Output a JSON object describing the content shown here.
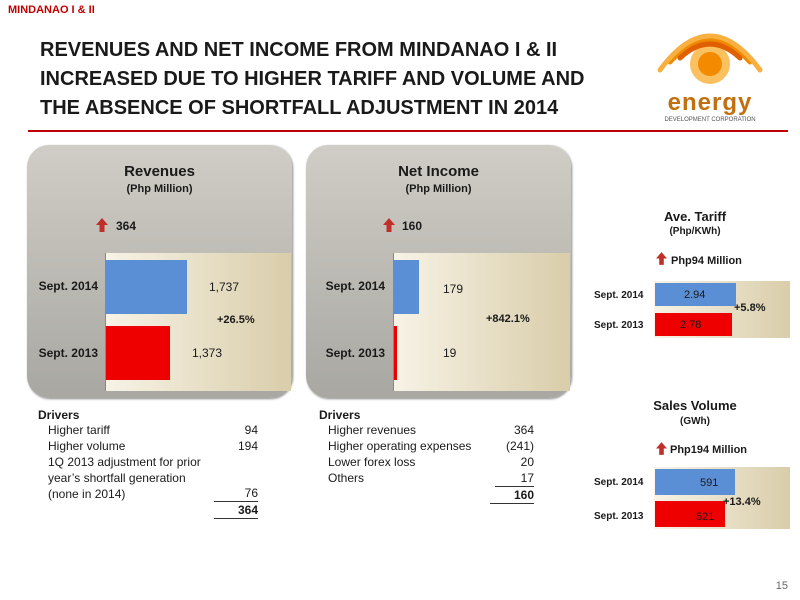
{
  "header": {
    "tag": "MINDANAO I & II",
    "title_lines": [
      "REVENUES AND NET INCOME FROM MINDANAO I & II",
      "INCREASED DUE TO HIGHER TARIFF AND VOLUME AND",
      "THE ABSENCE OF SHORTFALL ADJUSTMENT IN 2014"
    ]
  },
  "logo": {
    "word": "energy",
    "sub": "DEVELOPMENT CORPORATION"
  },
  "colors": {
    "accent": "#c00000",
    "blue_bar": "#5a8fd6",
    "red_bar": "#ee0000"
  },
  "revenues": {
    "title": "Revenues",
    "unit": "(Php Million)",
    "change": "364",
    "pct": "+26.5%",
    "drivers_label": "Drivers",
    "drivers": [
      {
        "label": "Higher tariff",
        "value": "94"
      },
      {
        "label": "Higher volume",
        "value": "194"
      },
      {
        "label": "1Q 2013 adjustment for prior year’s shortfall generation (none in 2014)",
        "value": "76"
      }
    ],
    "total": "364"
  },
  "net_income": {
    "title": "Net Income",
    "unit": "(Php Million)",
    "change": "160",
    "pct": "+842.1%",
    "drivers_label": "Drivers",
    "drivers": [
      {
        "label": "Higher revenues",
        "value": "364"
      },
      {
        "label": "Higher operating expenses",
        "value": "(241)"
      },
      {
        "label": "Lower forex loss",
        "value": "20"
      },
      {
        "label": "Others",
        "value": "17"
      }
    ],
    "total": "160"
  },
  "tariff": {
    "title": "Ave. Tariff",
    "unit": "(Php/KWh)",
    "change": "Php94 Million",
    "pct": "+5.8%"
  },
  "sales": {
    "title": "Sales Volume",
    "unit": "(GWh)",
    "change": "Php194 Million",
    "pct": "+13.4%"
  },
  "chart_data": [
    {
      "type": "bar",
      "title": "Revenues",
      "categories": [
        "Sept. 2014",
        "Sept. 2013"
      ],
      "values": [
        1737,
        1373
      ],
      "labels": [
        "1,737",
        "1,373"
      ],
      "xlim": [
        0,
        4000
      ]
    },
    {
      "type": "bar",
      "title": "Net Income",
      "categories": [
        "Sept. 2014",
        "Sept. 2013"
      ],
      "values": [
        179,
        19
      ],
      "labels": [
        "179",
        "19"
      ],
      "xlim": [
        0,
        1250
      ]
    },
    {
      "type": "bar",
      "title": "Ave. Tariff",
      "categories": [
        "Sept. 2014",
        "Sept. 2013"
      ],
      "values": [
        2.94,
        2.78
      ],
      "labels": [
        "2.94",
        "2.78"
      ],
      "xlim": [
        0,
        4.9
      ]
    },
    {
      "type": "bar",
      "title": "Sales Volume",
      "categories": [
        "Sept. 2014",
        "Sept. 2013"
      ],
      "values": [
        591,
        521
      ],
      "labels": [
        "591",
        "521"
      ],
      "xlim": [
        0,
        1000
      ]
    }
  ],
  "page_number": "15"
}
